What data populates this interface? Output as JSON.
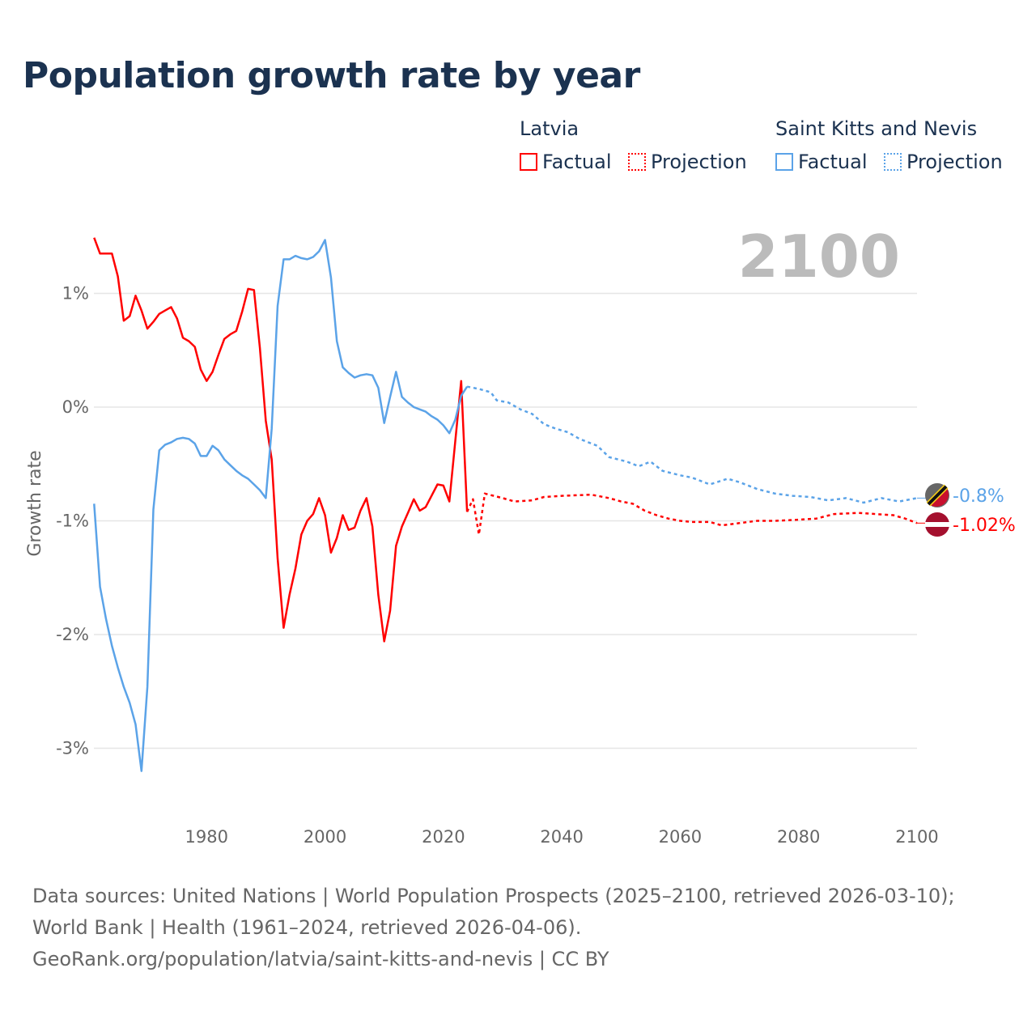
{
  "title": "Population growth rate by year",
  "legend": {
    "groups": [
      {
        "country": "Latvia",
        "color": "#ff0000",
        "factual": "Factual",
        "projection": "Projection"
      },
      {
        "country": "Saint Kitts and Nevis",
        "color": "#5ba3e8",
        "factual": "Factual",
        "projection": "Projection"
      }
    ]
  },
  "year_label": "2100",
  "footer": {
    "line1": "Data sources: United Nations | World Population Prospects (2025–2100, retrieved 2026-03-10); World Bank | Health (1961–2024, retrieved 2026-04-06).",
    "line2": "GeoRank.org/population/latvia/saint-kitts-and-nevis | CC BY"
  },
  "chart_data": {
    "type": "line",
    "ylabel": "Growth rate",
    "xlim": [
      1960,
      2100
    ],
    "ylim": [
      -3.5,
      1.6
    ],
    "xticks": [
      1980,
      2000,
      2020,
      2040,
      2060,
      2080,
      2100
    ],
    "xtick_labels": [
      "1980",
      "2000",
      "2020",
      "2040",
      "2060",
      "2080",
      "2100"
    ],
    "yticks": [
      1,
      0,
      -1,
      -2,
      -3
    ],
    "ytick_labels": [
      "1%",
      "0%",
      "-1%",
      "-2%",
      "-3%"
    ],
    "grid": true,
    "end_labels": [
      "-0.8%",
      "-1.02%"
    ],
    "series": [
      {
        "name": "Latvia Factual",
        "color": "#ff0000",
        "dashed": false,
        "x_start": 1961,
        "values": [
          1.49,
          1.35,
          1.35,
          1.35,
          1.15,
          0.76,
          0.8,
          0.98,
          0.85,
          0.69,
          0.75,
          0.82,
          0.85,
          0.88,
          0.78,
          0.61,
          0.58,
          0.53,
          0.33,
          0.23,
          0.31,
          0.46,
          0.6,
          0.64,
          0.67,
          0.84,
          1.04,
          1.03,
          0.52,
          -0.12,
          -0.46,
          -1.33,
          -1.94,
          -1.65,
          -1.42,
          -1.12,
          -1.0,
          -0.94,
          -0.8,
          -0.95,
          -1.28,
          -1.15,
          -0.95,
          -1.08,
          -1.06,
          -0.91,
          -0.8,
          -1.05,
          -1.65,
          -2.06,
          -1.79,
          -1.22,
          -1.05,
          -0.93,
          -0.81,
          -0.91,
          -0.88,
          -0.78,
          -0.68,
          -0.69,
          -0.83,
          -0.3,
          0.23,
          -0.92
        ]
      },
      {
        "name": "Latvia Projection",
        "color": "#ff0000",
        "dashed": true,
        "x": [
          2024,
          2025,
          2026,
          2027,
          2030,
          2032,
          2035,
          2037,
          2040,
          2045,
          2048,
          2050,
          2052,
          2054,
          2056,
          2058,
          2060,
          2062,
          2065,
          2067,
          2070,
          2073,
          2076,
          2080,
          2083,
          2086,
          2090,
          2093,
          2096,
          2098,
          2100
        ],
        "values": [
          -0.92,
          -0.81,
          -1.12,
          -0.76,
          -0.8,
          -0.83,
          -0.82,
          -0.79,
          -0.78,
          -0.77,
          -0.8,
          -0.83,
          -0.85,
          -0.91,
          -0.95,
          -0.98,
          -1.0,
          -1.01,
          -1.01,
          -1.04,
          -1.02,
          -1.0,
          -1.0,
          -0.99,
          -0.98,
          -0.94,
          -0.93,
          -0.94,
          -0.95,
          -0.98,
          -1.02
        ]
      },
      {
        "name": "Saint Kitts and Nevis Factual",
        "color": "#5ba3e8",
        "dashed": false,
        "x_start": 1961,
        "values": [
          -0.85,
          -1.58,
          -1.86,
          -2.1,
          -2.29,
          -2.46,
          -2.6,
          -2.79,
          -3.2,
          -2.46,
          -0.9,
          -0.38,
          -0.33,
          -0.31,
          -0.28,
          -0.27,
          -0.28,
          -0.32,
          -0.43,
          -0.43,
          -0.34,
          -0.38,
          -0.46,
          -0.51,
          -0.56,
          -0.6,
          -0.63,
          -0.68,
          -0.73,
          -0.8,
          -0.19,
          0.89,
          1.3,
          1.3,
          1.33,
          1.31,
          1.3,
          1.32,
          1.37,
          1.47,
          1.14,
          0.58,
          0.35,
          0.3,
          0.26,
          0.28,
          0.29,
          0.28,
          0.17,
          -0.14,
          0.09,
          0.31,
          0.09,
          0.04,
          0.0,
          -0.02,
          -0.04,
          -0.08,
          -0.11,
          -0.16,
          -0.23,
          -0.11,
          0.1,
          0.18
        ]
      },
      {
        "name": "Saint Kitts and Nevis Projection",
        "color": "#5ba3e8",
        "dashed": true,
        "x": [
          2024,
          2026,
          2028,
          2029,
          2031,
          2033,
          2035,
          2037,
          2039,
          2041,
          2043,
          2046,
          2048,
          2051,
          2053,
          2055,
          2057,
          2060,
          2062,
          2065,
          2068,
          2070,
          2073,
          2076,
          2079,
          2082,
          2085,
          2088,
          2091,
          2094,
          2097,
          2100
        ],
        "values": [
          0.18,
          0.16,
          0.13,
          0.06,
          0.04,
          -0.02,
          -0.06,
          -0.15,
          -0.19,
          -0.22,
          -0.28,
          -0.34,
          -0.44,
          -0.48,
          -0.52,
          -0.48,
          -0.56,
          -0.6,
          -0.62,
          -0.68,
          -0.63,
          -0.66,
          -0.72,
          -0.76,
          -0.78,
          -0.79,
          -0.82,
          -0.8,
          -0.84,
          -0.8,
          -0.83,
          -0.8
        ]
      }
    ]
  }
}
